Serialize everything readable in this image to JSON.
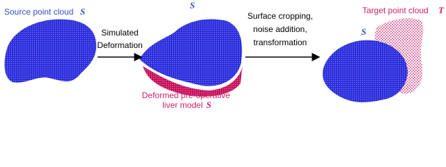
{
  "source": {
    "label": "Source point cloud",
    "symbol": "S"
  },
  "deformed_symbol": "S",
  "step1": {
    "lines": [
      "Simulated",
      "Deformation"
    ]
  },
  "deformed": {
    "lines": [
      "Deformed pre-operative",
      "liver model"
    ],
    "symbol": "S"
  },
  "step2": {
    "lines": [
      "Surface cropping,",
      "noise addition,",
      "transformation"
    ]
  },
  "target_source_symbol": "S",
  "target": {
    "label": "Target point cloud",
    "symbol": "T"
  }
}
